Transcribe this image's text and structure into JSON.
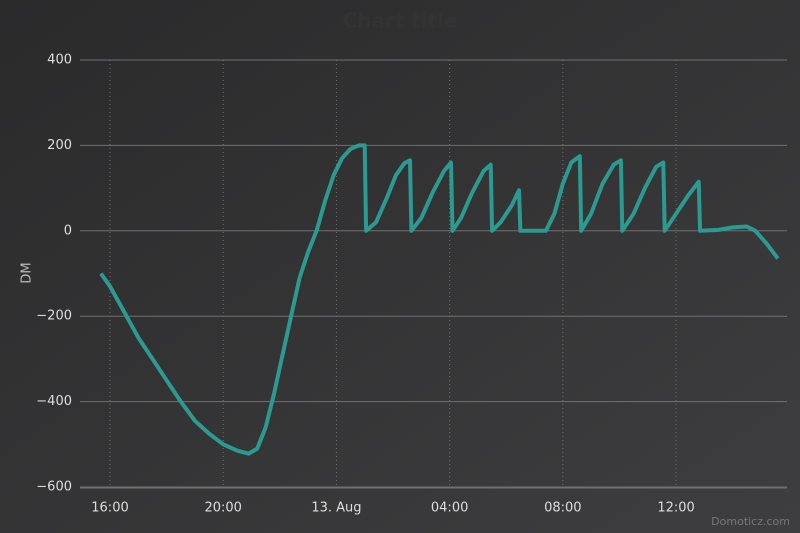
{
  "chart_data": {
    "type": "line",
    "title": "Chart title",
    "y_label": "DM",
    "credits": "Domoticz.com",
    "x": [
      15.68,
      16.0,
      16.5,
      17.0,
      17.5,
      18.0,
      18.5,
      19.0,
      19.5,
      20.0,
      20.5,
      20.9,
      21.2,
      21.5,
      21.8,
      22.1,
      22.4,
      22.7,
      23.0,
      23.3,
      23.6,
      23.9,
      24.2,
      24.5,
      24.8,
      25.0,
      25.05,
      25.4,
      25.8,
      26.1,
      26.4,
      26.6,
      26.65,
      27.0,
      27.4,
      27.8,
      28.05,
      28.1,
      28.4,
      28.8,
      29.2,
      29.45,
      29.5,
      29.8,
      30.2,
      30.45,
      30.5,
      31.4,
      31.7,
      32.0,
      32.3,
      32.6,
      32.65,
      33.0,
      33.4,
      33.8,
      34.05,
      34.1,
      34.5,
      34.9,
      35.3,
      35.55,
      35.6,
      36.0,
      36.4,
      36.8,
      36.85,
      37.5,
      38.0,
      38.5,
      38.8,
      39.2,
      39.6
    ],
    "series": [
      {
        "color": "#2b9a90",
        "values": [
          -100,
          -130,
          -190,
          -250,
          -300,
          -350,
          -400,
          -445,
          -475,
          -500,
          -515,
          -522,
          -510,
          -460,
          -380,
          -290,
          -200,
          -110,
          -50,
          0,
          70,
          130,
          170,
          192,
          200,
          200,
          0,
          20,
          80,
          130,
          158,
          165,
          0,
          30,
          90,
          140,
          160,
          0,
          30,
          90,
          140,
          155,
          0,
          20,
          60,
          95,
          0,
          0,
          40,
          110,
          160,
          175,
          0,
          40,
          110,
          155,
          165,
          0,
          40,
          100,
          150,
          160,
          0,
          40,
          80,
          115,
          0,
          2,
          8,
          10,
          0,
          -30,
          -65
        ]
      }
    ],
    "xlim": [
      14.94,
      39.92
    ],
    "xticks": [
      {
        "value": 16,
        "label": "16:00"
      },
      {
        "value": 20,
        "label": "20:00"
      },
      {
        "value": 24,
        "label": "13. Aug"
      },
      {
        "value": 28,
        "label": "04:00"
      },
      {
        "value": 32,
        "label": "08:00"
      },
      {
        "value": 36,
        "label": "12:00"
      }
    ],
    "ylim": [
      -600,
      400
    ],
    "yticks": [
      {
        "value": -600,
        "label": "−600"
      },
      {
        "value": -400,
        "label": "−400"
      },
      {
        "value": -200,
        "label": "−200"
      },
      0,
      200,
      400
    ],
    "grid": true
  }
}
